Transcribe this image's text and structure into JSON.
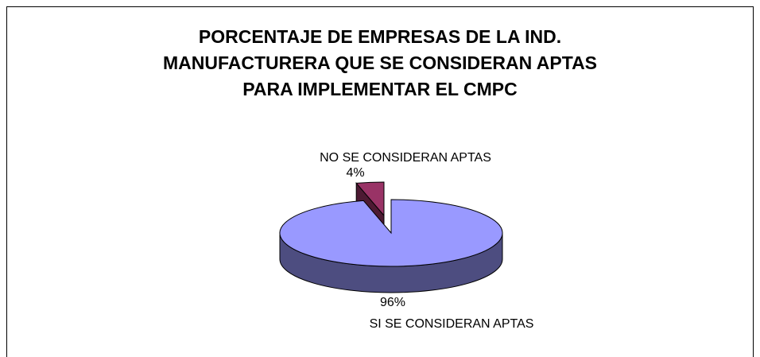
{
  "chart_data": {
    "type": "pie3d",
    "title": [
      "PORCENTAJE DE EMPRESAS DE LA IND.",
      "MANUFACTURERA QUE SE CONSIDERAN APTAS",
      "PARA IMPLEMENTAR EL CMPC"
    ],
    "categories": [
      "NO SE CONSIDERAN APTAS",
      "SI SE CONSIDERAN APTAS"
    ],
    "values": [
      4,
      96
    ],
    "value_labels": [
      "4%",
      "96%"
    ],
    "colors": [
      "#993366",
      "#9999ff"
    ],
    "side_colors": [
      "#4d1a33",
      "#4d4d80"
    ]
  }
}
